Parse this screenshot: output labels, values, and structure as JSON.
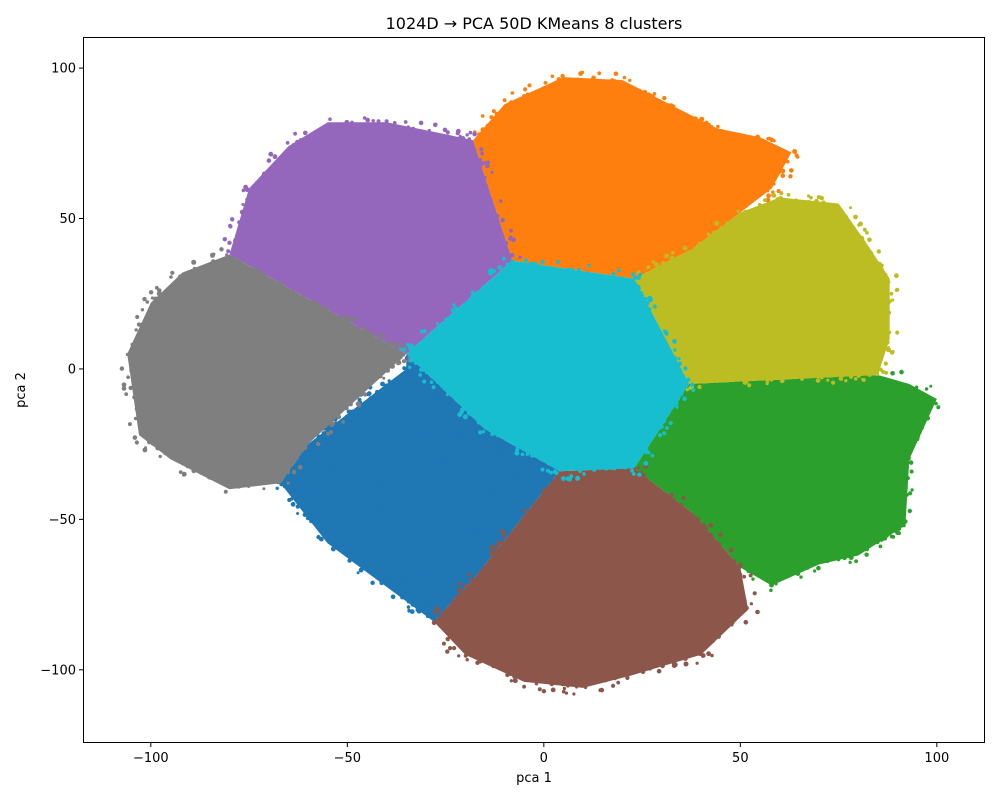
{
  "chart_data": {
    "type": "scatter",
    "title": "1024D → PCA 50D KMeans 8 clusters",
    "xlabel": "pca 1",
    "ylabel": "pca 2",
    "xlim": [
      -117,
      112
    ],
    "ylim": [
      -124,
      110
    ],
    "xticks": [
      -100,
      -50,
      0,
      50,
      100
    ],
    "yticks": [
      -100,
      -50,
      0,
      50,
      100
    ],
    "xtick_labels": [
      "−100",
      "−50",
      "0",
      "50",
      "100"
    ],
    "ytick_labels": [
      "−100",
      "−50",
      "0",
      "50",
      "100"
    ],
    "grid": false,
    "legend": false,
    "clusters": [
      {
        "id": 0,
        "color": "#1f77b4",
        "centroid": [
          -37,
          -43
        ],
        "polygon": [
          [
            -35,
            0
          ],
          [
            -35,
            5
          ],
          [
            -15,
            -20
          ],
          [
            4,
            -34
          ],
          [
            -18,
            -70
          ],
          [
            -28,
            -84
          ],
          [
            -55,
            -58
          ],
          [
            -67,
            -38
          ],
          [
            -60,
            -25
          ]
        ]
      },
      {
        "id": 1,
        "color": "#ff7f0e",
        "centroid": [
          18,
          68
        ],
        "polygon": [
          [
            -18,
            76
          ],
          [
            -10,
            88
          ],
          [
            5,
            97
          ],
          [
            20,
            96
          ],
          [
            32,
            88
          ],
          [
            44,
            80
          ],
          [
            55,
            77
          ],
          [
            63,
            72
          ],
          [
            58,
            60
          ],
          [
            50,
            52
          ],
          [
            38,
            40
          ],
          [
            23,
            30
          ],
          [
            -8,
            36
          ]
        ]
      },
      {
        "id": 2,
        "color": "#2ca02c",
        "centroid": [
          70,
          -40
        ],
        "polygon": [
          [
            37,
            -5
          ],
          [
            85,
            -2
          ],
          [
            93,
            -5
          ],
          [
            100,
            -10
          ],
          [
            93,
            -30
          ],
          [
            92,
            -52
          ],
          [
            80,
            -62
          ],
          [
            70,
            -65
          ],
          [
            58,
            -72
          ],
          [
            50,
            -66
          ],
          [
            38,
            -48
          ],
          [
            23,
            -33
          ]
        ]
      },
      {
        "id": 3,
        "color": "#9467bd",
        "centroid": [
          -45,
          50
        ],
        "polygon": [
          [
            -35,
            5
          ],
          [
            -8,
            36
          ],
          [
            -18,
            76
          ],
          [
            -25,
            78
          ],
          [
            -40,
            82
          ],
          [
            -55,
            82
          ],
          [
            -65,
            74
          ],
          [
            -75,
            60
          ],
          [
            -80,
            38
          ]
        ]
      },
      {
        "id": 4,
        "color": "#8c564b",
        "centroid": [
          15,
          -72
        ],
        "polygon": [
          [
            4,
            -34
          ],
          [
            23,
            -33
          ],
          [
            38,
            -48
          ],
          [
            50,
            -66
          ],
          [
            52,
            -80
          ],
          [
            40,
            -95
          ],
          [
            22,
            -102
          ],
          [
            10,
            -106
          ],
          [
            -5,
            -104
          ],
          [
            -20,
            -95
          ],
          [
            -28,
            -84
          ],
          [
            -18,
            -70
          ]
        ]
      },
      {
        "id": 5,
        "color": "#7f7f7f",
        "centroid": [
          -75,
          2
        ],
        "polygon": [
          [
            -35,
            5
          ],
          [
            -80,
            38
          ],
          [
            -92,
            32
          ],
          [
            -100,
            22
          ],
          [
            -106,
            5
          ],
          [
            -103,
            -22
          ],
          [
            -95,
            -30
          ],
          [
            -80,
            -40
          ],
          [
            -67,
            -38
          ],
          [
            -60,
            -25
          ]
        ]
      },
      {
        "id": 6,
        "color": "#bcbd22",
        "centroid": [
          62,
          22
        ],
        "polygon": [
          [
            23,
            30
          ],
          [
            38,
            40
          ],
          [
            50,
            52
          ],
          [
            60,
            57
          ],
          [
            75,
            55
          ],
          [
            82,
            42
          ],
          [
            88,
            30
          ],
          [
            88,
            10
          ],
          [
            85,
            -2
          ],
          [
            37,
            -5
          ]
        ]
      },
      {
        "id": 7,
        "color": "#17becf",
        "centroid": [
          5,
          5
        ],
        "polygon": [
          [
            -35,
            5
          ],
          [
            -8,
            36
          ],
          [
            23,
            30
          ],
          [
            37,
            -5
          ],
          [
            23,
            -33
          ],
          [
            4,
            -34
          ],
          [
            -15,
            -20
          ]
        ]
      }
    ]
  }
}
